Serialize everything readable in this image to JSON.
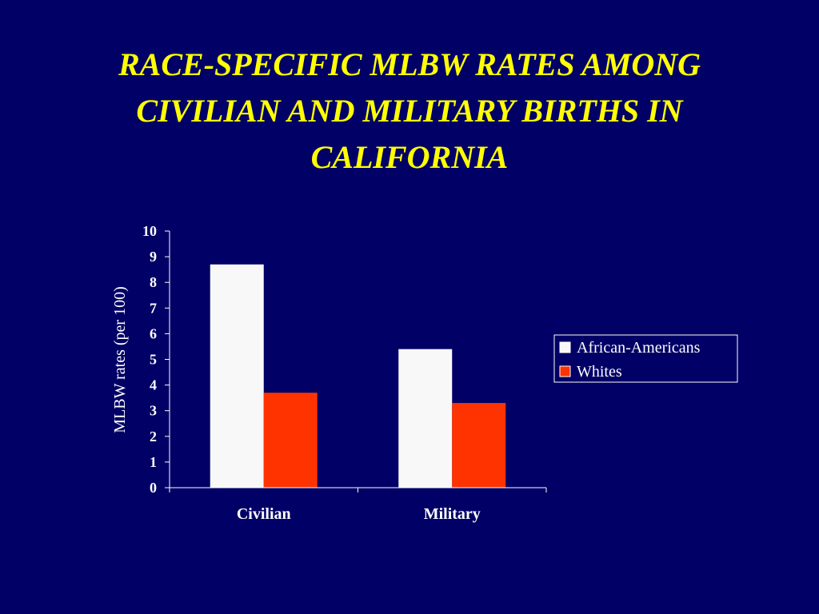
{
  "slide": {
    "title_lines": [
      "RACE-SPECIFIC MLBW RATES AMONG",
      "CIVILIAN AND MILITARY BIRTHS IN",
      "CALIFORNIA"
    ]
  },
  "colors": {
    "background": "#000066",
    "title": "#ffff00",
    "axis": "#ffffff"
  },
  "chart_data": {
    "type": "bar",
    "title": "RACE-SPECIFIC MLBW RATES AMONG CIVILIAN AND MILITARY BIRTHS IN CALIFORNIA",
    "categories": [
      "Civilian",
      "Military"
    ],
    "series": [
      {
        "name": "African-Americans",
        "values": [
          8.7,
          5.4
        ],
        "color": "#f8f8f8"
      },
      {
        "name": "Whites",
        "values": [
          3.7,
          3.3
        ],
        "color": "#ff3300"
      }
    ],
    "xlabel": "",
    "ylabel": "MLBW rates (per 100)",
    "ylim": [
      0,
      10
    ],
    "yticks": [
      0,
      1,
      2,
      3,
      4,
      5,
      6,
      7,
      8,
      9,
      10
    ],
    "grid": false,
    "legend_position": "right"
  }
}
